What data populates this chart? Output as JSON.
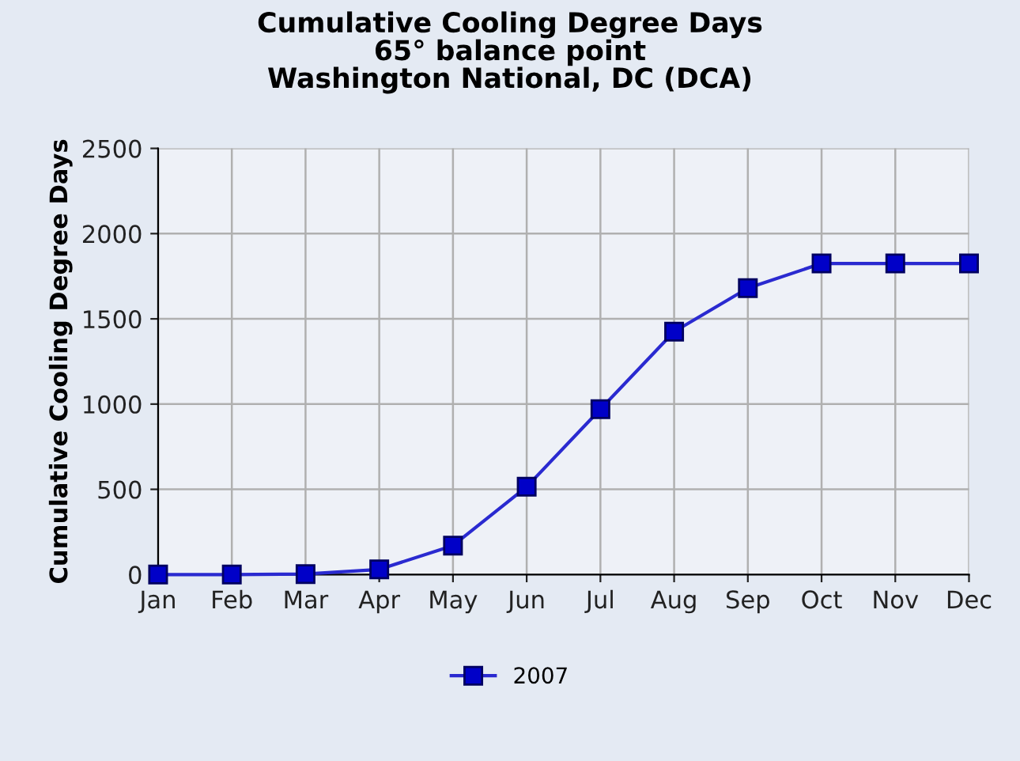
{
  "chart_data": {
    "type": "line",
    "title": "Cumulative Cooling Degree Days\n65° balance point\nWashington National, DC (DCA)",
    "ylabel": "Cumulative Cooling Degree Days",
    "categories": [
      "Jan",
      "Feb",
      "Mar",
      "Apr",
      "May",
      "Jun",
      "Jul",
      "Aug",
      "Sep",
      "Oct",
      "Nov",
      "Dec"
    ],
    "series": [
      {
        "name": "2007",
        "color": "#2a2ad0",
        "values": [
          0,
          0,
          3,
          30,
          170,
          515,
          970,
          1425,
          1680,
          1825,
          1825,
          1825
        ]
      }
    ],
    "ylim": [
      0,
      2500
    ],
    "yticks": [
      0,
      500,
      1000,
      1500,
      2000,
      2500
    ],
    "grid": true,
    "legend": "bottom",
    "marker": "square",
    "line_style": "solid"
  }
}
